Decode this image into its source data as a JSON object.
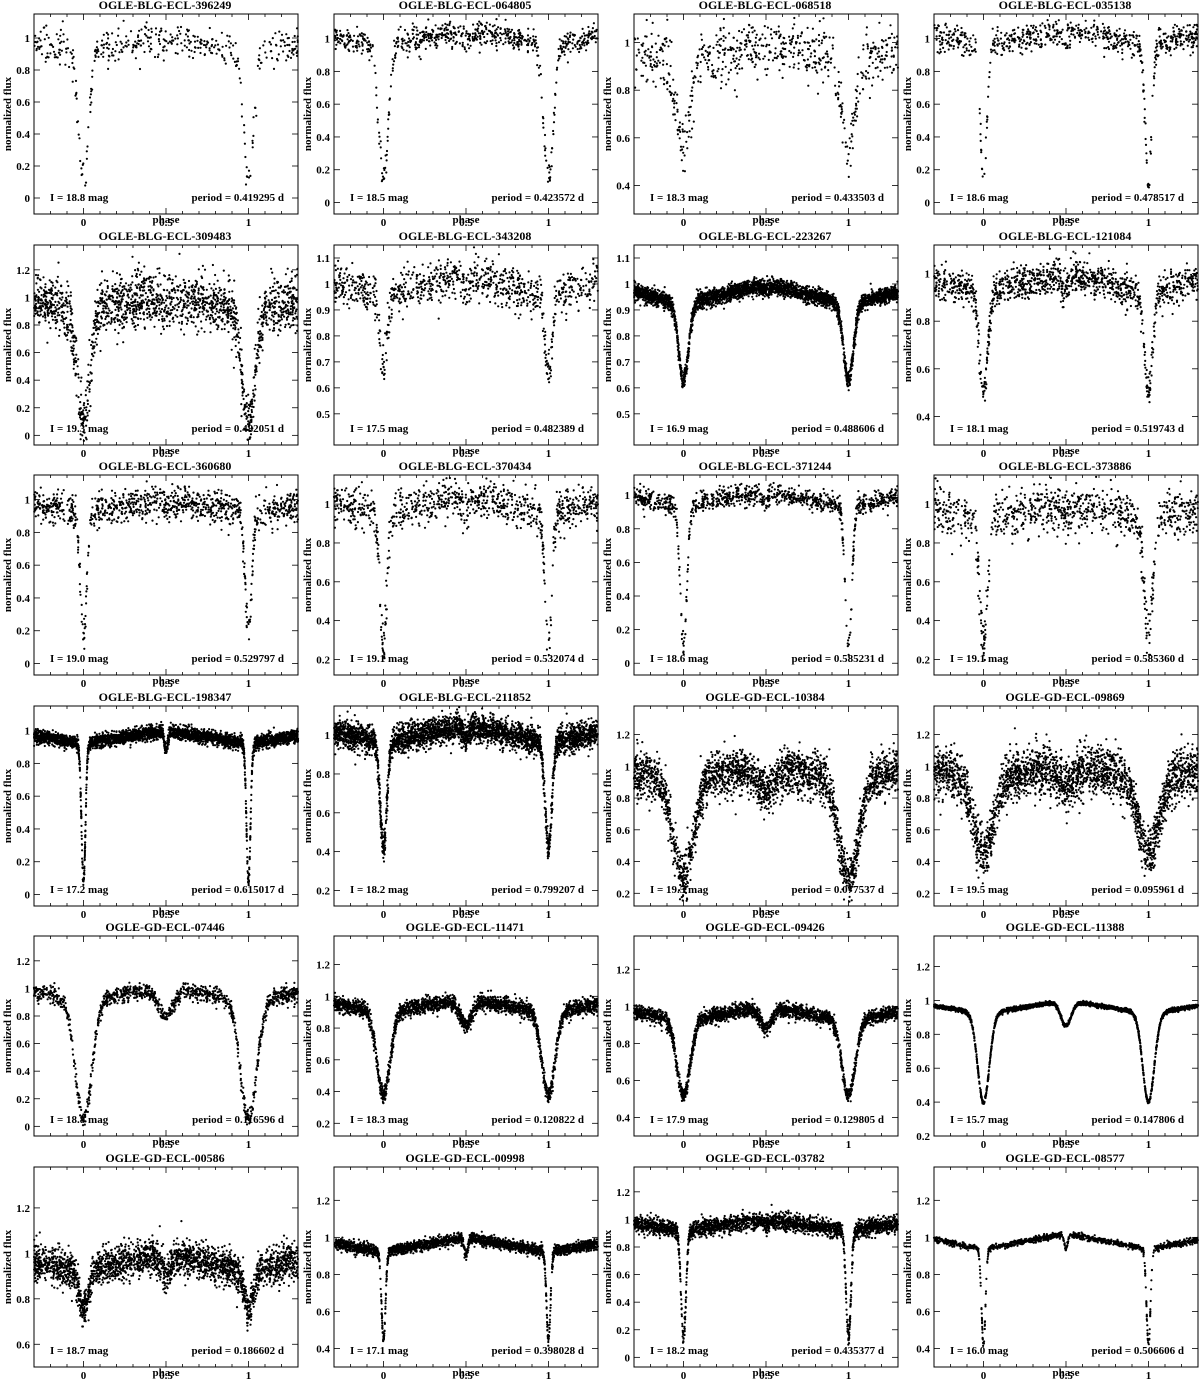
{
  "figure": {
    "xlabel": "phase",
    "ylabel": "normalized flux",
    "x_ticks": [
      "0",
      "0.5",
      "1"
    ]
  },
  "chart_data": [
    {
      "type": "scatter",
      "title": "OGLE-BLG-ECL-396249",
      "mag": "I = 18.8 mag",
      "period": "period = 0.419295 d",
      "ylim": [
        -0.1,
        1.15
      ],
      "yticks": [
        "0",
        "0.2",
        "0.4",
        "0.6",
        "0.8",
        "1"
      ],
      "minima": {
        "primary": 0.1,
        "secondary": 0.95
      },
      "max_flux": 1.0,
      "noise": 0.05,
      "width": 0.03,
      "n": 420
    },
    {
      "type": "scatter",
      "title": "OGLE-BLG-ECL-064805",
      "mag": "I = 18.5 mag",
      "period": "period = 0.423572 d",
      "ylim": [
        -0.07,
        1.15
      ],
      "yticks": [
        "0",
        "0.2",
        "0.4",
        "0.6",
        "0.8",
        "1"
      ],
      "minima": {
        "primary": 0.15,
        "secondary": 0.98
      },
      "max_flux": 1.05,
      "noise": 0.04,
      "width": 0.03,
      "n": 700
    },
    {
      "type": "scatter",
      "title": "OGLE-BLG-ECL-068518",
      "mag": "I = 18.3 mag",
      "period": "period = 0.433503 d",
      "ylim": [
        0.28,
        1.12
      ],
      "yticks": [
        "0.4",
        "0.6",
        "0.8",
        "1"
      ],
      "minima": {
        "primary": 0.55,
        "secondary": 0.95
      },
      "max_flux": 1.0,
      "noise": 0.06,
      "width": 0.04,
      "n": 650
    },
    {
      "type": "scatter",
      "title": "OGLE-BLG-ECL-035138",
      "mag": "I = 18.6 mag",
      "period": "period = 0.478517 d",
      "ylim": [
        -0.07,
        1.15
      ],
      "yticks": [
        "0",
        "0.2",
        "0.4",
        "0.6",
        "0.8",
        "1"
      ],
      "minima": {
        "primary": 0.15,
        "secondary": 0.98
      },
      "max_flux": 1.05,
      "noise": 0.04,
      "width": 0.02,
      "n": 700
    },
    {
      "type": "scatter",
      "title": "OGLE-BLG-ECL-309483",
      "mag": "I = 19.3 mag",
      "period": "period = 0.482051 d",
      "ylim": [
        -0.07,
        1.38
      ],
      "yticks": [
        "0",
        "0.2",
        "0.4",
        "0.6",
        "0.8",
        "1",
        "1.2"
      ],
      "minima": {
        "primary": 0.1,
        "secondary": 0.95
      },
      "max_flux": 1.0,
      "noise": 0.1,
      "width": 0.04,
      "n": 1700
    },
    {
      "type": "scatter",
      "title": "OGLE-BLG-ECL-343208",
      "mag": "I = 17.5 mag",
      "period": "period = 0.482389 d",
      "ylim": [
        0.38,
        1.15
      ],
      "yticks": [
        "0.5",
        "0.6",
        "0.7",
        "0.8",
        "0.9",
        "1",
        "1.1"
      ],
      "minima": {
        "primary": 0.65,
        "secondary": 0.98
      },
      "max_flux": 1.04,
      "noise": 0.04,
      "width": 0.02,
      "n": 900
    },
    {
      "type": "scatter",
      "title": "OGLE-BLG-ECL-223267",
      "mag": "I = 16.9 mag",
      "period": "period = 0.488606 d",
      "ylim": [
        0.38,
        1.15
      ],
      "yticks": [
        "0.5",
        "0.6",
        "0.7",
        "0.8",
        "0.9",
        "1",
        "1.1"
      ],
      "minima": {
        "primary": 0.63,
        "secondary": 0.98
      },
      "max_flux": 1.0,
      "noise": 0.015,
      "width": 0.03,
      "n": 3500
    },
    {
      "type": "scatter",
      "title": "OGLE-BLG-ECL-121084",
      "mag": "I = 18.1 mag",
      "period": "period = 0.519743 d",
      "ylim": [
        0.28,
        1.12
      ],
      "yticks": [
        "0.4",
        "0.6",
        "0.8",
        "1"
      ],
      "minima": {
        "primary": 0.5,
        "secondary": 0.95
      },
      "max_flux": 1.0,
      "noise": 0.035,
      "width": 0.025,
      "n": 1200
    },
    {
      "type": "scatter",
      "title": "OGLE-BLG-ECL-360680",
      "mag": "I = 19.0 mag",
      "period": "period = 0.529797 d",
      "ylim": [
        -0.07,
        1.15
      ],
      "yticks": [
        "0",
        "0.2",
        "0.4",
        "0.6",
        "0.8",
        "1"
      ],
      "minima": {
        "primary": 0.2,
        "secondary": 0.95
      },
      "max_flux": 1.0,
      "noise": 0.05,
      "width": 0.02,
      "n": 1000
    },
    {
      "type": "scatter",
      "title": "OGLE-BLG-ECL-370434",
      "mag": "I = 19.1 mag",
      "period": "period = 0.532074 d",
      "ylim": [
        0.12,
        1.15
      ],
      "yticks": [
        "0.2",
        "0.4",
        "0.6",
        "0.8",
        "1"
      ],
      "minima": {
        "primary": 0.25,
        "secondary": 0.98
      },
      "max_flux": 1.04,
      "noise": 0.05,
      "width": 0.02,
      "n": 900
    },
    {
      "type": "scatter",
      "title": "OGLE-BLG-ECL-371244",
      "mag": "I = 18.6 mag",
      "period": "period = 0.585231 d",
      "ylim": [
        -0.07,
        1.12
      ],
      "yticks": [
        "0",
        "0.2",
        "0.4",
        "0.6",
        "0.8",
        "1"
      ],
      "minima": {
        "primary": 0.1,
        "secondary": 0.95
      },
      "max_flux": 1.02,
      "noise": 0.03,
      "width": 0.02,
      "n": 1000
    },
    {
      "type": "scatter",
      "title": "OGLE-BLG-ECL-373886",
      "mag": "I = 19.1 mag",
      "period": "period = 0.585360 d",
      "ylim": [
        0.12,
        1.15
      ],
      "yticks": [
        "0.2",
        "0.4",
        "0.6",
        "0.8",
        "1"
      ],
      "minima": {
        "primary": 0.3,
        "secondary": 0.95
      },
      "max_flux": 1.0,
      "noise": 0.06,
      "width": 0.025,
      "n": 900
    },
    {
      "type": "scatter",
      "title": "OGLE-BLG-ECL-198347",
      "mag": "I = 17.2 mag",
      "period": "period = 0.615017 d",
      "ylim": [
        -0.07,
        1.15
      ],
      "yticks": [
        "0",
        "0.2",
        "0.4",
        "0.6",
        "0.8",
        "1"
      ],
      "minima": {
        "primary": 0.08,
        "secondary": 0.88
      },
      "max_flux": 1.0,
      "noise": 0.02,
      "width": 0.012,
      "n": 3500
    },
    {
      "type": "scatter",
      "title": "OGLE-BLG-ECL-211852",
      "mag": "I = 18.2 mag",
      "period": "period = 0.799207 d",
      "ylim": [
        0.12,
        1.15
      ],
      "yticks": [
        "0.2",
        "0.4",
        "0.6",
        "0.8",
        "1"
      ],
      "minima": {
        "primary": 0.42,
        "secondary": 0.98
      },
      "max_flux": 1.05,
      "noise": 0.035,
      "width": 0.02,
      "n": 3500
    },
    {
      "type": "scatter",
      "title": "OGLE-GD-ECL-10384",
      "mag": "I = 19.5 mag",
      "period": "period = 0.077537 d",
      "ylim": [
        0.12,
        1.38
      ],
      "yticks": [
        "0.2",
        "0.4",
        "0.6",
        "0.8",
        "1",
        "1.2"
      ],
      "minima": {
        "primary": 0.3,
        "secondary": 0.85
      },
      "max_flux": 1.0,
      "noise": 0.07,
      "width": 0.06,
      "n": 2500
    },
    {
      "type": "scatter",
      "title": "OGLE-GD-ECL-09869",
      "mag": "I = 19.5 mag",
      "period": "period = 0.095961 d",
      "ylim": [
        0.12,
        1.38
      ],
      "yticks": [
        "0.2",
        "0.4",
        "0.6",
        "0.8",
        "1",
        "1.2"
      ],
      "minima": {
        "primary": 0.45,
        "secondary": 0.88
      },
      "max_flux": 1.0,
      "noise": 0.08,
      "width": 0.06,
      "n": 2500
    },
    {
      "type": "scatter",
      "title": "OGLE-GD-ECL-07446",
      "mag": "I = 18.8 mag",
      "period": "period = 0.116596 d",
      "ylim": [
        -0.07,
        1.38
      ],
      "yticks": [
        "0",
        "0.2",
        "0.4",
        "0.6",
        "0.8",
        "1",
        "1.2"
      ],
      "minima": {
        "primary": 0.05,
        "secondary": 0.8
      },
      "max_flux": 1.0,
      "noise": 0.03,
      "width": 0.05,
      "n": 1200
    },
    {
      "type": "scatter",
      "title": "OGLE-GD-ECL-11471",
      "mag": "I = 18.3 mag",
      "period": "period = 0.120822 d",
      "ylim": [
        0.12,
        1.38
      ],
      "yticks": [
        "0.2",
        "0.4",
        "0.6",
        "0.8",
        "1",
        "1.2"
      ],
      "minima": {
        "primary": 0.38,
        "secondary": 0.82
      },
      "max_flux": 0.98,
      "noise": 0.025,
      "width": 0.04,
      "n": 2500
    },
    {
      "type": "scatter",
      "title": "OGLE-GD-ECL-09426",
      "mag": "I = 17.9 mag",
      "period": "period = 0.129805 d",
      "ylim": [
        0.3,
        1.38
      ],
      "yticks": [
        "0.4",
        "0.6",
        "0.8",
        "1",
        "1.2"
      ],
      "minima": {
        "primary": 0.52,
        "secondary": 0.88
      },
      "max_flux": 1.0,
      "noise": 0.02,
      "width": 0.04,
      "n": 2500
    },
    {
      "type": "scatter",
      "title": "OGLE-GD-ECL-11388",
      "mag": "I = 15.7 mag",
      "period": "period = 0.147806 d",
      "ylim": [
        0.2,
        1.38
      ],
      "yticks": [
        "0.2",
        "0.4",
        "0.6",
        "0.8",
        "1",
        "1.2"
      ],
      "minima": {
        "primary": 0.4,
        "secondary": 0.85
      },
      "max_flux": 1.0,
      "noise": 0.006,
      "width": 0.035,
      "n": 2500
    },
    {
      "type": "scatter",
      "title": "OGLE-GD-ECL-00586",
      "mag": "I = 18.7 mag",
      "period": "period = 0.186602 d",
      "ylim": [
        0.5,
        1.38
      ],
      "yticks": [
        "0.6",
        "0.8",
        "1",
        "1.2"
      ],
      "minima": {
        "primary": 0.76,
        "secondary": 0.9
      },
      "max_flux": 1.0,
      "noise": 0.04,
      "width": 0.03,
      "n": 2500
    },
    {
      "type": "scatter",
      "title": "OGLE-GD-ECL-00998",
      "mag": "I = 17.1 mag",
      "period": "period = 0.398028 d",
      "ylim": [
        0.3,
        1.38
      ],
      "yticks": [
        "0.4",
        "0.6",
        "0.8",
        "1",
        "1.2"
      ],
      "minima": {
        "primary": 0.45,
        "secondary": 0.9
      },
      "max_flux": 1.0,
      "noise": 0.015,
      "width": 0.012,
      "n": 2500
    },
    {
      "type": "scatter",
      "title": "OGLE-GD-ECL-03782",
      "mag": "I = 18.2 mag",
      "period": "period = 0.435377 d",
      "ylim": [
        -0.07,
        1.38
      ],
      "yticks": [
        "0",
        "0.2",
        "0.4",
        "0.6",
        "0.8",
        "1",
        "1.2"
      ],
      "minima": {
        "primary": 0.15,
        "secondary": 0.95
      },
      "max_flux": 1.0,
      "noise": 0.03,
      "width": 0.015,
      "n": 2500
    },
    {
      "type": "scatter",
      "title": "OGLE-GD-ECL-08577",
      "mag": "I = 16.0 mag",
      "period": "period = 0.506606 d",
      "ylim": [
        0.3,
        1.38
      ],
      "yticks": [
        "0.4",
        "0.6",
        "0.8",
        "1",
        "1.2"
      ],
      "minima": {
        "primary": 0.42,
        "secondary": 0.94
      },
      "max_flux": 1.02,
      "noise": 0.008,
      "width": 0.012,
      "n": 1200
    }
  ]
}
